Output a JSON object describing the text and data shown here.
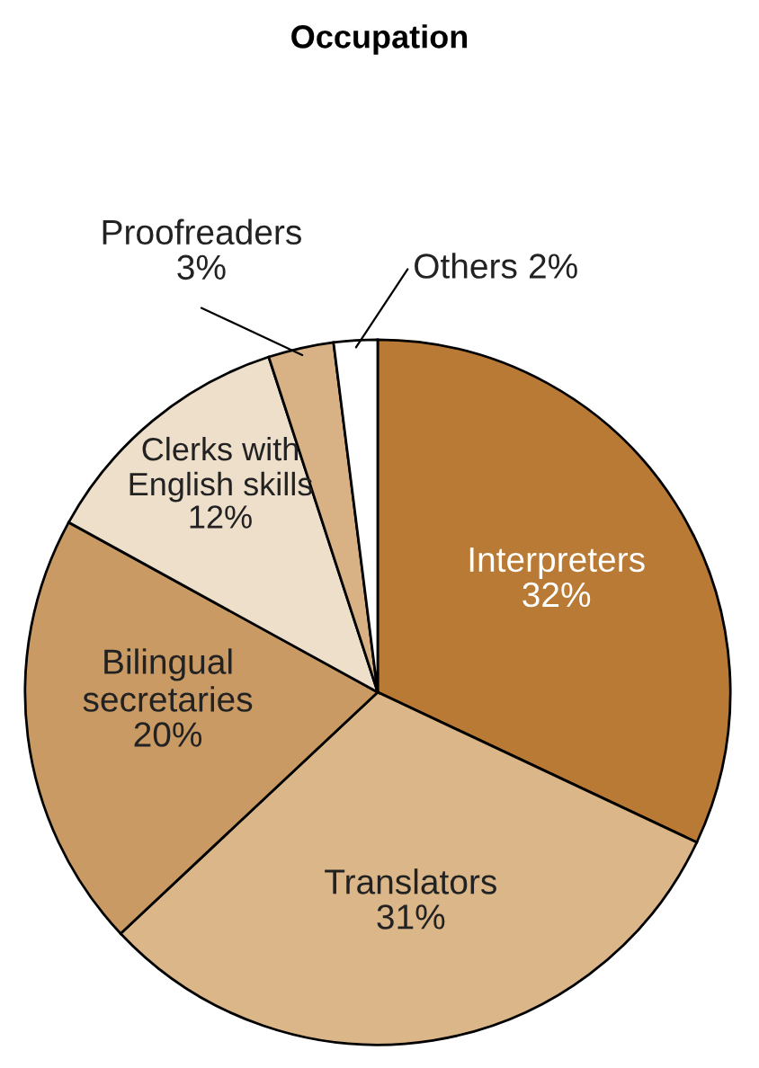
{
  "chart_data": {
    "type": "pie",
    "title": "Occupation",
    "categories": [
      "Interpreters",
      "Translators",
      "Bilingual\nsecretaries",
      "Clerks with\nEnglish skills",
      "Proofreaders",
      "Others"
    ],
    "values": [
      32,
      31,
      20,
      12,
      3,
      2
    ],
    "colors": [
      "#b97a35",
      "#dbb688",
      "#c99a63",
      "#eedfcb",
      "#d8b184",
      "#ffffff"
    ],
    "value_labels": [
      "32%",
      "31%",
      "20%",
      "12%",
      "3%",
      "2%"
    ],
    "legend": false
  }
}
